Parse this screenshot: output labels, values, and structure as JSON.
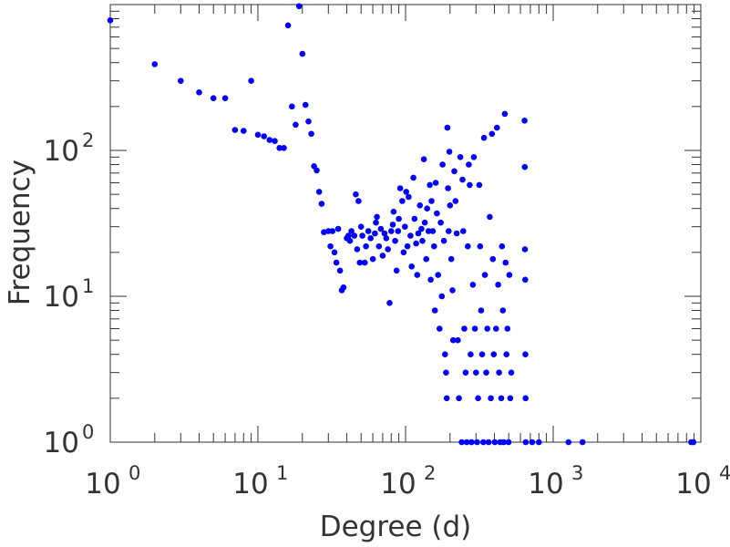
{
  "chart_data": {
    "type": "scatter",
    "xlabel": "Degree (d)",
    "ylabel": "Frequency",
    "xscale": "log",
    "yscale": "log",
    "xlim": [
      1,
      10000
    ],
    "ylim": [
      1,
      1000
    ],
    "x_ticks": [
      {
        "base": "10",
        "exp": "0"
      },
      {
        "base": "10",
        "exp": "1"
      },
      {
        "base": "10",
        "exp": "2"
      },
      {
        "base": "10",
        "exp": "3"
      },
      {
        "base": "10",
        "exp": "4"
      }
    ],
    "y_ticks": [
      {
        "base": "10",
        "exp": "0"
      },
      {
        "base": "10",
        "exp": "1"
      },
      {
        "base": "10",
        "exp": "2"
      }
    ],
    "grid": false,
    "marker_color": "#0000ff",
    "points": [
      [
        1,
        780
      ],
      [
        2,
        390
      ],
      [
        3,
        300
      ],
      [
        4,
        250
      ],
      [
        5,
        228
      ],
      [
        6,
        228
      ],
      [
        7,
        138
      ],
      [
        8,
        136
      ],
      [
        9,
        300
      ],
      [
        10,
        128
      ],
      [
        11,
        125
      ],
      [
        12,
        118
      ],
      [
        13,
        116
      ],
      [
        14,
        104
      ],
      [
        15,
        104
      ],
      [
        16,
        720
      ],
      [
        17,
        200
      ],
      [
        18,
        150
      ],
      [
        19,
        975
      ],
      [
        20,
        460
      ],
      [
        21,
        205
      ],
      [
        22,
        158
      ],
      [
        23,
        130
      ],
      [
        24,
        78
      ],
      [
        25,
        73
      ],
      [
        26,
        52
      ],
      [
        27,
        43
      ],
      [
        28,
        27.5
      ],
      [
        30,
        28
      ],
      [
        31,
        22
      ],
      [
        32,
        28
      ],
      [
        33,
        20
      ],
      [
        34,
        17
      ],
      [
        35,
        29
      ],
      [
        36,
        15
      ],
      [
        37,
        11
      ],
      [
        38,
        11.5
      ],
      [
        40,
        25
      ],
      [
        41,
        26
      ],
      [
        42,
        24
      ],
      [
        43,
        28
      ],
      [
        45,
        26
      ],
      [
        46,
        50
      ],
      [
        47,
        21
      ],
      [
        48,
        45
      ],
      [
        49,
        17
      ],
      [
        50,
        30
      ],
      [
        51,
        26
      ],
      [
        53,
        17
      ],
      [
        54,
        22
      ],
      [
        56,
        28
      ],
      [
        58,
        25
      ],
      [
        60,
        18
      ],
      [
        62,
        27
      ],
      [
        63,
        32
      ],
      [
        64,
        35
      ],
      [
        66,
        22
      ],
      [
        68,
        29
      ],
      [
        70,
        19
      ],
      [
        72,
        27
      ],
      [
        74,
        25
      ],
      [
        76,
        21
      ],
      [
        78,
        9
      ],
      [
        80,
        28
      ],
      [
        82,
        31
      ],
      [
        83,
        38
      ],
      [
        85,
        24
      ],
      [
        87,
        15
      ],
      [
        89,
        28
      ],
      [
        90,
        34
      ],
      [
        92,
        55
      ],
      [
        95,
        45
      ],
      [
        97,
        20
      ],
      [
        99,
        30
      ],
      [
        101,
        52
      ],
      [
        103,
        22
      ],
      [
        105,
        48
      ],
      [
        108,
        26
      ],
      [
        110,
        16
      ],
      [
        113,
        65
      ],
      [
        115,
        34
      ],
      [
        118,
        23
      ],
      [
        120,
        14
      ],
      [
        122,
        27
      ],
      [
        125,
        42
      ],
      [
        128,
        29
      ],
      [
        130,
        24
      ],
      [
        133,
        87
      ],
      [
        135,
        32
      ],
      [
        138,
        18
      ],
      [
        140,
        40
      ],
      [
        143,
        28
      ],
      [
        146,
        58
      ],
      [
        148,
        13
      ],
      [
        150,
        45
      ],
      [
        153,
        28
      ],
      [
        156,
        22
      ],
      [
        158,
        8
      ],
      [
        160,
        60
      ],
      [
        163,
        37
      ],
      [
        166,
        14
      ],
      [
        170,
        6
      ],
      [
        173,
        32
      ],
      [
        176,
        10
      ],
      [
        178,
        80
      ],
      [
        182,
        24
      ],
      [
        185,
        4
      ],
      [
        188,
        3
      ],
      [
        190,
        2
      ],
      [
        192,
        143
      ],
      [
        194,
        55
      ],
      [
        196,
        28
      ],
      [
        198,
        98
      ],
      [
        200,
        42
      ],
      [
        204,
        18
      ],
      [
        208,
        11
      ],
      [
        210,
        5
      ],
      [
        214,
        72
      ],
      [
        218,
        45
      ],
      [
        222,
        27
      ],
      [
        226,
        5
      ],
      [
        230,
        2
      ],
      [
        235,
        90
      ],
      [
        240,
        1
      ],
      [
        243,
        63
      ],
      [
        246,
        28
      ],
      [
        250,
        6
      ],
      [
        255,
        3
      ],
      [
        260,
        1
      ],
      [
        264,
        22
      ],
      [
        268,
        80
      ],
      [
        272,
        58
      ],
      [
        276,
        4
      ],
      [
        280,
        1
      ],
      [
        286,
        12
      ],
      [
        290,
        90
      ],
      [
        295,
        6
      ],
      [
        300,
        3
      ],
      [
        305,
        1
      ],
      [
        310,
        2
      ],
      [
        316,
        58
      ],
      [
        320,
        22
      ],
      [
        325,
        8
      ],
      [
        330,
        4
      ],
      [
        336,
        1
      ],
      [
        340,
        122
      ],
      [
        345,
        14
      ],
      [
        352,
        3
      ],
      [
        358,
        6
      ],
      [
        365,
        1
      ],
      [
        372,
        35
      ],
      [
        378,
        2
      ],
      [
        385,
        130
      ],
      [
        390,
        18
      ],
      [
        396,
        4
      ],
      [
        402,
        1
      ],
      [
        410,
        6
      ],
      [
        416,
        143
      ],
      [
        424,
        12
      ],
      [
        430,
        3
      ],
      [
        438,
        1
      ],
      [
        445,
        2
      ],
      [
        450,
        22
      ],
      [
        456,
        8
      ],
      [
        462,
        1
      ],
      [
        470,
        178
      ],
      [
        476,
        17
      ],
      [
        482,
        4
      ],
      [
        490,
        6
      ],
      [
        498,
        1
      ],
      [
        505,
        14
      ],
      [
        512,
        2
      ],
      [
        520,
        3
      ],
      [
        640,
        160
      ],
      [
        642,
        77
      ],
      [
        644,
        21
      ],
      [
        646,
        13
      ],
      [
        648,
        4
      ],
      [
        650,
        2
      ],
      [
        652,
        1
      ],
      [
        720,
        1
      ],
      [
        800,
        1
      ],
      [
        1270,
        1
      ],
      [
        1580,
        1
      ],
      [
        8600,
        1
      ],
      [
        8900,
        1
      ]
    ]
  }
}
